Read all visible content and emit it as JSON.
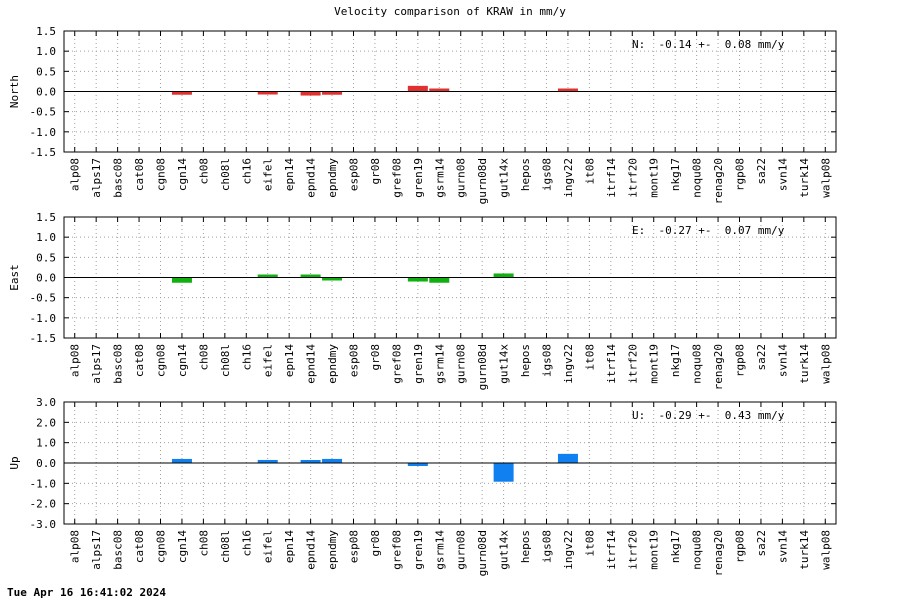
{
  "title": "Velocity comparison of KRAW in mm/y",
  "timestamp": "Tue Apr 16 16:41:02 2024",
  "chart_data": [
    {
      "type": "bar",
      "ylabel": "North",
      "annotation": "N:  -0.14 +-  0.08 mm/y",
      "ylim": [
        -1.5,
        1.5
      ],
      "yticks": [
        1.5,
        1.0,
        0.5,
        0.0,
        -0.5,
        -1.0,
        -1.5
      ],
      "ytick_labels": [
        "1.5",
        "1.0",
        "0.5",
        "0.0",
        "-0.5",
        "-1.0",
        "-1.5"
      ],
      "grid": true,
      "color": "#e03030",
      "categories": [
        "alp08",
        "alps17",
        "basc08",
        "cat08",
        "cgn08",
        "cgn14",
        "ch08",
        "ch08l",
        "ch16",
        "eifel",
        "epn14",
        "epnd14",
        "epndmy",
        "esp08",
        "gr08",
        "gref08",
        "gren19",
        "gsrm14",
        "gurn08",
        "gurn08d",
        "gut14x",
        "hepos",
        "igs08",
        "ingv22",
        "it08",
        "itrf14",
        "itrf20",
        "mont19",
        "nkg17",
        "noqu08",
        "renag20",
        "rgp08",
        "sa22",
        "svn14",
        "turk14",
        "walp08"
      ],
      "values": [
        0,
        0,
        0,
        0,
        0,
        -0.08,
        0,
        0,
        0,
        -0.04,
        0,
        -0.1,
        -0.08,
        0,
        0,
        0,
        0.14,
        0.02,
        0,
        0,
        0,
        0,
        0,
        0.06,
        0,
        0,
        0,
        0,
        0,
        0,
        0,
        0,
        0,
        0,
        0,
        0
      ]
    },
    {
      "type": "bar",
      "ylabel": "East",
      "annotation": "E:  -0.27 +-  0.07 mm/y",
      "ylim": [
        -1.5,
        1.5
      ],
      "yticks": [
        1.5,
        1.0,
        0.5,
        0.0,
        -0.5,
        -1.0,
        -1.5
      ],
      "ytick_labels": [
        "1.5",
        "1.0",
        "0.5",
        "0.0",
        "-0.5",
        "-1.0",
        "-1.5"
      ],
      "grid": true,
      "color": "#10b010",
      "categories": [
        "alp08",
        "alps17",
        "basc08",
        "cat08",
        "cgn08",
        "cgn14",
        "ch08",
        "ch08l",
        "ch16",
        "eifel",
        "epn14",
        "epnd14",
        "epndmy",
        "esp08",
        "gr08",
        "gref08",
        "gren19",
        "gsrm14",
        "gurn08",
        "gurn08d",
        "gut14x",
        "hepos",
        "igs08",
        "ingv22",
        "it08",
        "itrf14",
        "itrf20",
        "mont19",
        "nkg17",
        "noqu08",
        "renag20",
        "rgp08",
        "sa22",
        "svn14",
        "turk14",
        "walp08"
      ],
      "values": [
        0,
        0,
        0,
        0,
        0,
        -0.13,
        0,
        0,
        0,
        0.02,
        0,
        0.07,
        -0.07,
        0,
        0,
        0,
        -0.1,
        -0.13,
        0,
        0,
        0.1,
        0,
        0,
        0,
        0,
        0,
        0,
        0,
        0,
        0,
        0,
        0,
        0,
        0,
        0,
        0
      ]
    },
    {
      "type": "bar",
      "ylabel": "Up",
      "annotation": "U:  -0.29 +-  0.43 mm/y",
      "ylim": [
        -3.0,
        3.0
      ],
      "yticks": [
        3.0,
        2.0,
        1.0,
        0.0,
        -1.0,
        -2.0,
        -3.0
      ],
      "ytick_labels": [
        "3.0",
        "2.0",
        "1.0",
        "0.0",
        "-1.0",
        "-2.0",
        "-3.0"
      ],
      "grid": true,
      "color": "#1080f0",
      "categories": [
        "alp08",
        "alps17",
        "basc08",
        "cat08",
        "cgn08",
        "cgn14",
        "ch08",
        "ch08l",
        "ch16",
        "eifel",
        "epn14",
        "epnd14",
        "epndmy",
        "esp08",
        "gr08",
        "gref08",
        "gren19",
        "gsrm14",
        "gurn08",
        "gurn08d",
        "gut14x",
        "hepos",
        "igs08",
        "ingv22",
        "it08",
        "itrf14",
        "itrf20",
        "mont19",
        "nkg17",
        "noqu08",
        "renag20",
        "rgp08",
        "sa22",
        "svn14",
        "turk14",
        "walp08"
      ],
      "values": [
        0,
        0,
        0,
        0,
        0,
        0.2,
        0,
        0,
        0,
        0.15,
        0,
        0.05,
        0.2,
        0,
        0,
        0,
        -0.12,
        0,
        0,
        0,
        -0.92,
        0,
        0,
        0.45,
        0,
        0,
        0,
        0,
        0,
        0,
        0,
        0,
        0,
        0,
        0,
        0
      ]
    }
  ]
}
